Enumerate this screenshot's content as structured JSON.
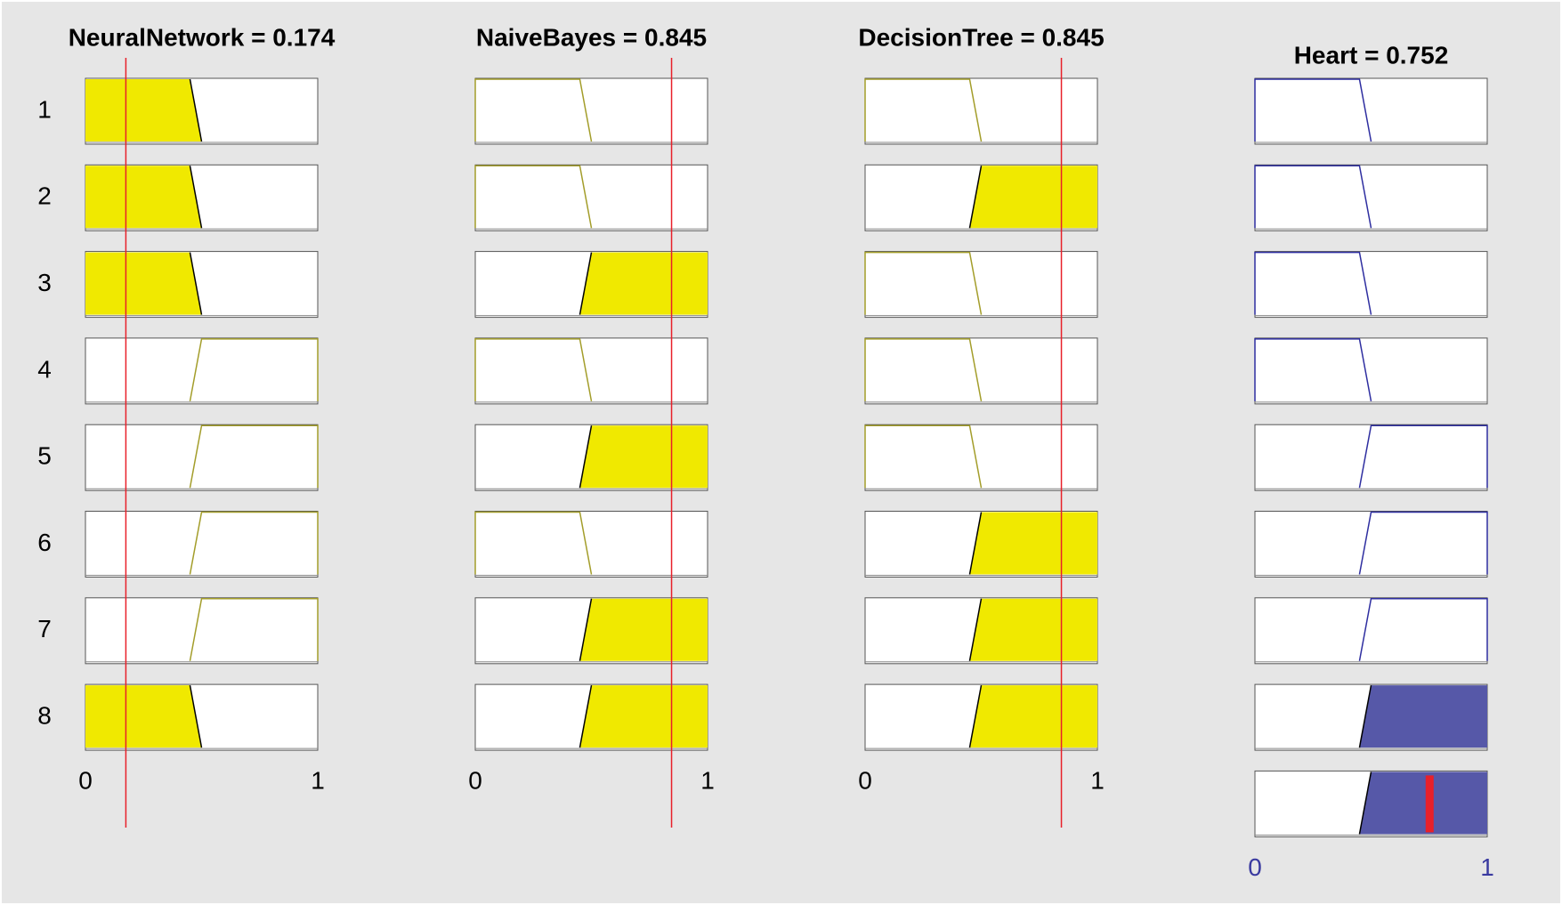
{
  "rule_numbers": [
    "1",
    "2",
    "3",
    "4",
    "5",
    "6",
    "7",
    "8"
  ],
  "columns": [
    {
      "title": "NeuralNetwork = 0.174",
      "value": 0.174,
      "xlim": [
        0,
        1
      ],
      "xticks": [
        0,
        1
      ],
      "role": "input",
      "color": "#f0e900",
      "edge": "#a39d2a",
      "shapes": [
        "low",
        "low",
        "low",
        "high",
        "high",
        "high",
        "high",
        "low"
      ],
      "filled": [
        true,
        true,
        true,
        false,
        false,
        false,
        false,
        true
      ]
    },
    {
      "title": "NaiveBayes = 0.845",
      "value": 0.845,
      "xlim": [
        0,
        1
      ],
      "xticks": [
        0,
        1
      ],
      "role": "input",
      "color": "#f0e900",
      "edge": "#a39d2a",
      "shapes": [
        "low",
        "low",
        "high",
        "low",
        "high",
        "low",
        "high",
        "high"
      ],
      "filled": [
        false,
        false,
        true,
        false,
        true,
        false,
        true,
        true
      ]
    },
    {
      "title": "DecisionTree = 0.845",
      "value": 0.845,
      "xlim": [
        0,
        1
      ],
      "xticks": [
        0,
        1
      ],
      "role": "input",
      "color": "#f0e900",
      "edge": "#a39d2a",
      "shapes": [
        "low",
        "high",
        "low",
        "low",
        "low",
        "high",
        "high",
        "high"
      ],
      "filled": [
        false,
        true,
        false,
        false,
        false,
        true,
        true,
        true
      ]
    },
    {
      "title": "Heart = 0.752",
      "value": 0.752,
      "xlim": [
        0,
        1
      ],
      "xticks": [
        0,
        1
      ],
      "role": "output",
      "color": "#5658a8",
      "edge": "#2e2ea0",
      "shapes": [
        "low",
        "low",
        "low",
        "low",
        "high",
        "high",
        "high",
        "high",
        "high"
      ],
      "filled": [
        false,
        false,
        false,
        false,
        false,
        false,
        false,
        true,
        true
      ]
    }
  ]
}
